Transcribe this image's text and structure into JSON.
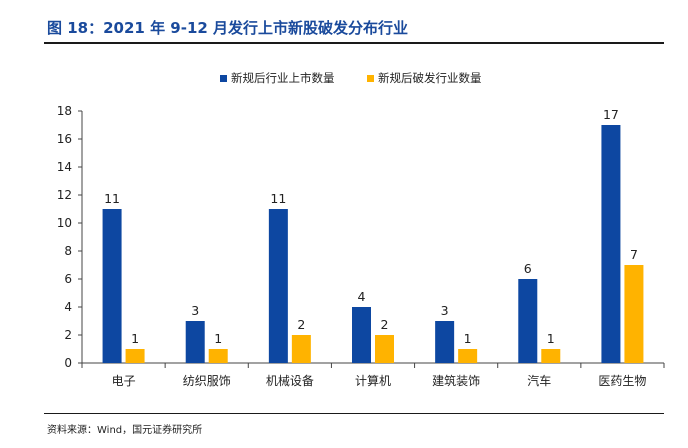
{
  "figure": {
    "title": "图 18：2021 年 9-12 月发行上市新股破发分布行业",
    "source": "资料来源：Wind，国元证券研究所"
  },
  "colors": {
    "series1": "#0d47a1",
    "series2": "#ffb300"
  },
  "chart_data": {
    "type": "bar",
    "title": "",
    "xlabel": "",
    "ylabel": "",
    "categories": [
      "电子",
      "纺织服饰",
      "机械设备",
      "计算机",
      "建筑装饰",
      "汽车",
      "医药生物"
    ],
    "series": [
      {
        "name": "新规后行业上市数量",
        "values": [
          11,
          3,
          11,
          4,
          3,
          6,
          17
        ]
      },
      {
        "name": "新规后破发行业数量",
        "values": [
          1,
          1,
          2,
          2,
          1,
          1,
          7
        ]
      }
    ],
    "ylim": [
      0,
      18
    ],
    "yticks": [
      0,
      2,
      4,
      6,
      8,
      10,
      12,
      14,
      16,
      18
    ],
    "grid": false,
    "legend": "top-center",
    "data_labels": true
  }
}
